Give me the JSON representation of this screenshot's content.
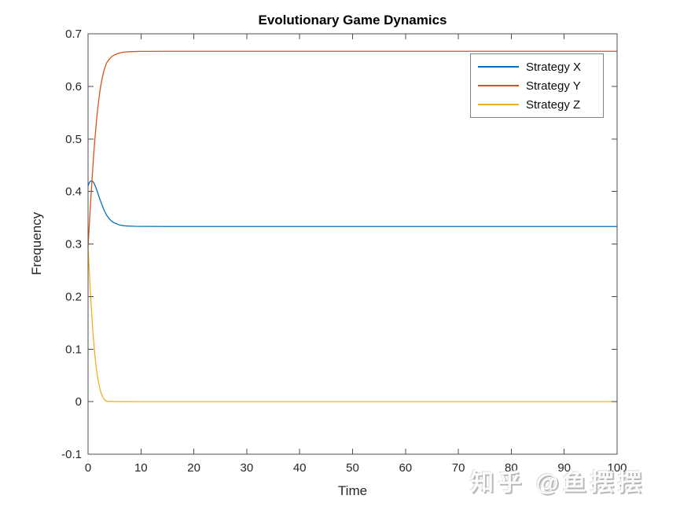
{
  "chart_data": {
    "type": "line",
    "title": "Evolutionary Game Dynamics",
    "xlabel": "Time",
    "ylabel": "Frequency",
    "xlim": [
      0,
      100
    ],
    "ylim": [
      -0.1,
      0.7
    ],
    "grid": false,
    "legend_position": "top-right",
    "axis_color": "#4d4d4d",
    "tick_label_color": "#262626",
    "xticks": {
      "values": [
        0,
        10,
        20,
        30,
        40,
        50,
        60,
        70,
        80,
        90,
        100
      ],
      "labels": [
        "0",
        "10",
        "20",
        "30",
        "40",
        "50",
        "60",
        "70",
        "80",
        "90",
        "100"
      ]
    },
    "yticks": {
      "values": [
        -0.1,
        0,
        0.1,
        0.2,
        0.3,
        0.4,
        0.5,
        0.6,
        0.7
      ],
      "labels": [
        "-0.1",
        "0",
        "0.1",
        "0.2",
        "0.3",
        "0.4",
        "0.5",
        "0.6",
        "0.7"
      ]
    },
    "x": [
      0,
      0.2,
      0.4,
      0.6,
      0.8,
      1,
      1.25,
      1.5,
      1.75,
      2,
      2.25,
      2.5,
      3,
      3.5,
      4,
      4.5,
      5,
      6,
      7,
      8,
      9,
      10,
      12,
      15,
      20,
      30,
      50,
      100
    ],
    "series": [
      {
        "name": "Strategy X",
        "color": "#0072BD",
        "steady_state": 0.333,
        "values": [
          0.41,
          0.416,
          0.419,
          0.42,
          0.42,
          0.418,
          0.413,
          0.407,
          0.4,
          0.392,
          0.385,
          0.378,
          0.365,
          0.355,
          0.348,
          0.343,
          0.34,
          0.336,
          0.3345,
          0.334,
          0.3336,
          0.3335,
          0.3334,
          0.3333,
          0.3333,
          0.3333,
          0.3333,
          0.3333
        ]
      },
      {
        "name": "Strategy Y",
        "color": "#D95319",
        "steady_state": 0.667,
        "values": [
          0.295,
          0.33,
          0.365,
          0.398,
          0.43,
          0.46,
          0.494,
          0.524,
          0.55,
          0.572,
          0.591,
          0.607,
          0.63,
          0.6445,
          0.6515,
          0.6567,
          0.6598,
          0.6638,
          0.6654,
          0.6659,
          0.6664,
          0.6665,
          0.6666,
          0.6667,
          0.6667,
          0.6667,
          0.6667,
          0.6667
        ]
      },
      {
        "name": "Strategy Z",
        "color": "#EDB120",
        "steady_state": 0,
        "values": [
          0.295,
          0.254,
          0.216,
          0.182,
          0.15,
          0.122,
          0.093,
          0.069,
          0.05,
          0.036,
          0.024,
          0.015,
          0.005,
          0.0005,
          0.0005,
          0.0003,
          0.0002,
          0.0001,
          0.0001,
          0.0001,
          0,
          0,
          0,
          0,
          0,
          0,
          0,
          0
        ]
      }
    ]
  },
  "watermark": {
    "text": "知乎 @鱼摆摆"
  }
}
